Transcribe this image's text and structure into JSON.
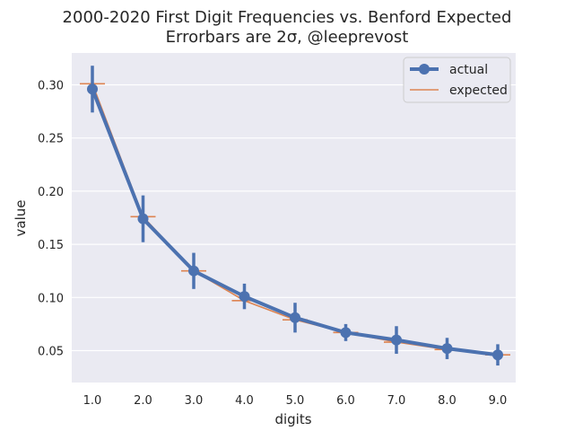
{
  "chart_data": {
    "type": "line",
    "title": "2000-2020 First Digit Frequencies vs. Benford Expected",
    "subtitle": "Errorbars are 2σ, @leeprevost",
    "xlabel": "digits",
    "ylabel": "value",
    "categories": [
      "1.0",
      "2.0",
      "3.0",
      "4.0",
      "5.0",
      "6.0",
      "7.0",
      "8.0",
      "9.0"
    ],
    "ylim": [
      0.02,
      0.33
    ],
    "yticks": [
      "0.05",
      "0.10",
      "0.15",
      "0.20",
      "0.25",
      "0.30"
    ],
    "ytick_values": [
      0.05,
      0.1,
      0.15,
      0.2,
      0.25,
      0.3
    ],
    "grid": true,
    "legend_position": "top-right",
    "series": [
      {
        "name": "actual",
        "color": "#4c72b0",
        "style": "line-with-markers-and-errorbars",
        "values": [
          0.296,
          0.174,
          0.125,
          0.101,
          0.081,
          0.067,
          0.06,
          0.052,
          0.046
        ],
        "errors": [
          0.022,
          0.022,
          0.017,
          0.012,
          0.014,
          0.008,
          0.013,
          0.01,
          0.01
        ]
      },
      {
        "name": "expected",
        "color": "#dd8452",
        "style": "line-with-hmarkers",
        "values": [
          0.301,
          0.176,
          0.125,
          0.097,
          0.079,
          0.067,
          0.058,
          0.051,
          0.046
        ]
      }
    ]
  }
}
